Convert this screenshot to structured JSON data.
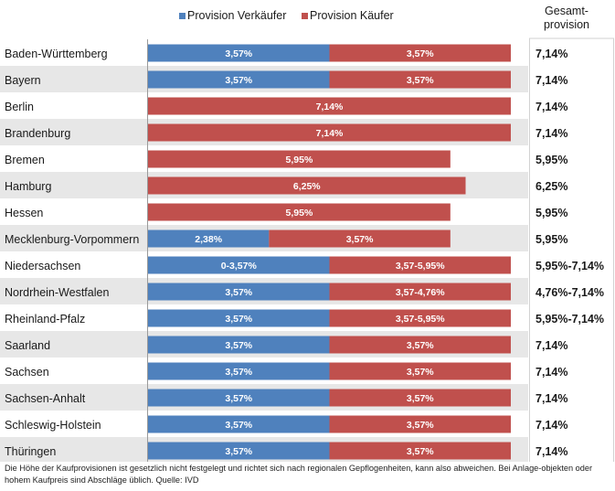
{
  "chart_data": {
    "type": "bar",
    "stacked": true,
    "orientation": "horizontal",
    "legend_position": "top",
    "series": [
      {
        "name": "Provision Verkäufer",
        "color": "#4f81bd"
      },
      {
        "name": "Provision Käufer",
        "color": "#c0504d"
      }
    ],
    "total_header": [
      "Gesamt-",
      "provision"
    ],
    "rows": [
      {
        "state": "Baden-Württemberg",
        "seller": 3.57,
        "buyer": 3.57,
        "seller_label": "3,57%",
        "buyer_label": "3,57%",
        "total": "7,14%"
      },
      {
        "state": "Bayern",
        "seller": 3.57,
        "buyer": 3.57,
        "seller_label": "3,57%",
        "buyer_label": "3,57%",
        "total": "7,14%"
      },
      {
        "state": "Berlin",
        "seller": 0,
        "buyer": 7.14,
        "seller_label": "",
        "buyer_label": "7,14%",
        "total": "7,14%"
      },
      {
        "state": "Brandenburg",
        "seller": 0,
        "buyer": 7.14,
        "seller_label": "",
        "buyer_label": "7,14%",
        "total": "7,14%"
      },
      {
        "state": "Bremen",
        "seller": 0,
        "buyer": 5.95,
        "seller_label": "",
        "buyer_label": "5,95%",
        "total": "5,95%"
      },
      {
        "state": "Hamburg",
        "seller": 0,
        "buyer": 6.25,
        "seller_label": "",
        "buyer_label": "6,25%",
        "total": "6,25%"
      },
      {
        "state": "Hessen",
        "seller": 0,
        "buyer": 5.95,
        "seller_label": "",
        "buyer_label": "5,95%",
        "total": "5,95%"
      },
      {
        "state": "Mecklenburg-Vorpommern",
        "seller": 2.38,
        "buyer": 3.57,
        "seller_label": "2,38%",
        "buyer_label": "3,57%",
        "total": "5,95%"
      },
      {
        "state": "Niedersachsen",
        "seller": 3.57,
        "buyer": 3.57,
        "seller_label": "0-3,57%",
        "buyer_label": "3,57-5,95%",
        "total": "5,95%-7,14%"
      },
      {
        "state": "Nordrhein-Westfalen",
        "seller": 3.57,
        "buyer": 3.57,
        "seller_label": "3,57%",
        "buyer_label": "3,57-4,76%",
        "total": "4,76%-7,14%"
      },
      {
        "state": "Rheinland-Pfalz",
        "seller": 3.57,
        "buyer": 3.57,
        "seller_label": "3,57%",
        "buyer_label": "3,57-5,95%",
        "total": "5,95%-7,14%"
      },
      {
        "state": "Saarland",
        "seller": 3.57,
        "buyer": 3.57,
        "seller_label": "3,57%",
        "buyer_label": "3,57%",
        "total": "7,14%"
      },
      {
        "state": "Sachsen",
        "seller": 3.57,
        "buyer": 3.57,
        "seller_label": "3,57%",
        "buyer_label": "3,57%",
        "total": "7,14%"
      },
      {
        "state": "Sachsen-Anhalt",
        "seller": 3.57,
        "buyer": 3.57,
        "seller_label": "3,57%",
        "buyer_label": "3,57%",
        "total": "7,14%"
      },
      {
        "state": "Schleswig-Holstein",
        "seller": 3.57,
        "buyer": 3.57,
        "seller_label": "3,57%",
        "buyer_label": "3,57%",
        "total": "7,14%"
      },
      {
        "state": "Thüringen",
        "seller": 3.57,
        "buyer": 3.57,
        "seller_label": "3,57%",
        "buyer_label": "3,57%",
        "total": "7,14%"
      }
    ],
    "xlim": [
      0,
      7.14
    ]
  },
  "footnote": "Die Höhe der Kaufprovisionen ist gesetzlich nicht festgelegt und richtet sich nach regionalen Gepflogenheiten, kann also abweichen. Bei Anlage-objekten oder hohem Kaufpreis sind Abschläge üblich. Quelle: IVD"
}
